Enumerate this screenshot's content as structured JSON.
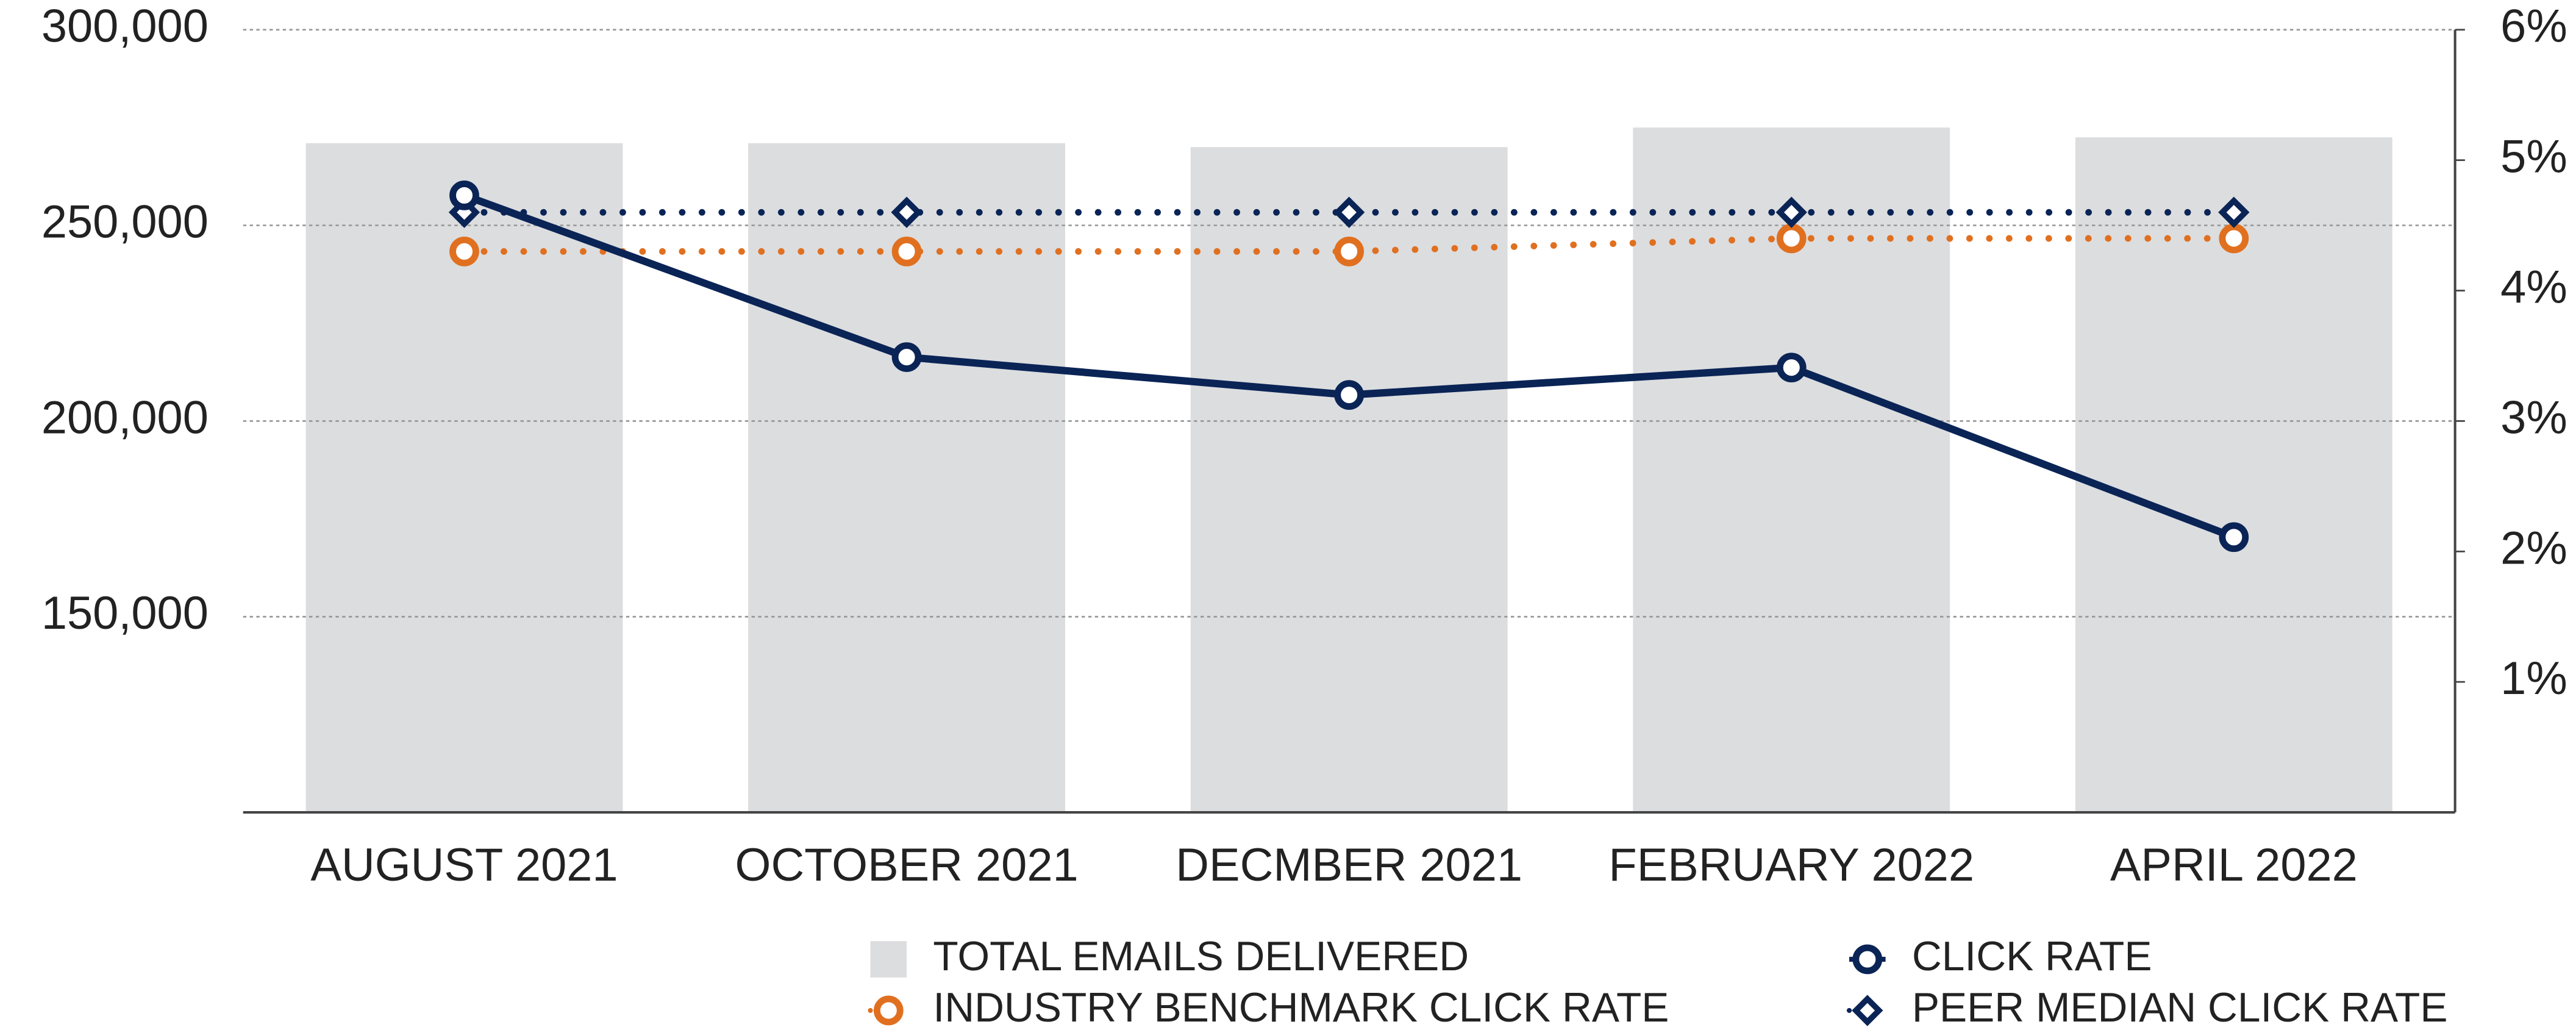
{
  "chart_data": {
    "type": "combo",
    "categories": [
      "AUGUST 2021",
      "OCTOBER 2021",
      "DECMBER 2021",
      "FEBRUARY 2022",
      "APRIL 2022"
    ],
    "series": [
      {
        "name": "TOTAL EMAILS DELIVERED",
        "type": "bar",
        "axis": "y",
        "color": "#dcdddf",
        "values": [
          271000,
          271000,
          270000,
          275000,
          272500
        ]
      },
      {
        "name": "CLICK RATE",
        "type": "line",
        "axis": "y2",
        "color": "#0a2456",
        "line_style": "solid",
        "marker": "circle",
        "values": [
          4.73,
          3.49,
          3.2,
          3.41,
          2.11
        ]
      },
      {
        "name": "INDUSTRY BENCHMARK CLICK RATE",
        "type": "line",
        "axis": "y2",
        "color": "#e07020",
        "line_style": "dotted",
        "marker": "circle",
        "values": [
          4.3,
          4.3,
          4.3,
          4.4,
          4.4
        ]
      },
      {
        "name": "PEER MEDIAN CLICK RATE",
        "type": "line",
        "axis": "y2",
        "color": "#0a2456",
        "line_style": "dotted",
        "marker": "diamond",
        "values": [
          4.6,
          4.6,
          4.6,
          4.6,
          4.6
        ]
      }
    ],
    "ylim": [
      100000,
      300000
    ],
    "yticks": [
      {
        "value": 150000,
        "label": "150,000"
      },
      {
        "value": 200000,
        "label": "200,000"
      },
      {
        "value": 250000,
        "label": "250,000"
      },
      {
        "value": 300000,
        "label": "300,000"
      }
    ],
    "y2lim": [
      0,
      6
    ],
    "y2ticks": [
      {
        "value": 1,
        "label": "1%"
      },
      {
        "value": 2,
        "label": "2%"
      },
      {
        "value": 3,
        "label": "3%"
      },
      {
        "value": 4,
        "label": "4%"
      },
      {
        "value": 5,
        "label": "5%"
      },
      {
        "value": 6,
        "label": "6%"
      }
    ],
    "grid": true
  }
}
